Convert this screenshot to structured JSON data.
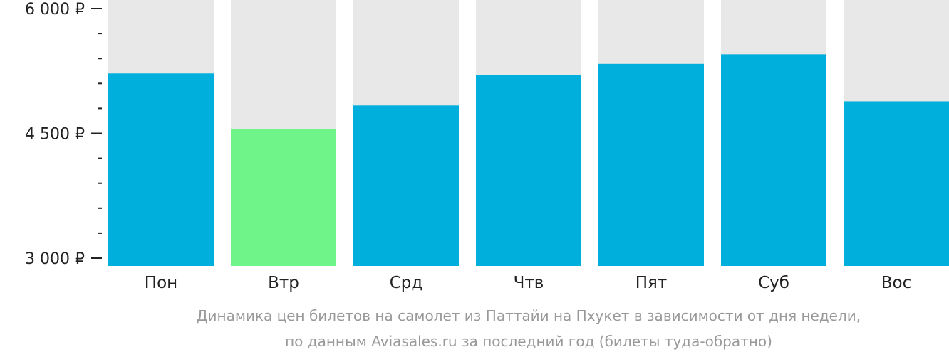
{
  "chart_data": {
    "type": "bar",
    "categories": [
      "Пон",
      "Втр",
      "Срд",
      "Чтв",
      "Пят",
      "Суб",
      "Вос"
    ],
    "values": [
      5220,
      4555,
      4835,
      5205,
      5335,
      5450,
      4885
    ],
    "highlight_index": 1,
    "ylim": [
      3000,
      6000
    ],
    "yticks": [
      {
        "value": 6000,
        "label": "6 000 ₽"
      },
      {
        "value": 4500,
        "label": "4 500 ₽"
      },
      {
        "value": 3000,
        "label": "3 000 ₽"
      }
    ],
    "minor_ticks": [
      5700,
      5400,
      5100,
      4800,
      4200,
      3900,
      3600,
      3300
    ],
    "caption_lines": [
      "Динамика цен билетов на самолет из Паттайи на Пхукет в зависимости от дня недели,",
      "по данным Aviasales.ru за последний год (билеты туда-обратно)"
    ],
    "colors": {
      "bar": "#00afdb",
      "highlight": "#6ff48a",
      "background_bar": "#e8e8e8",
      "axis": "#222222",
      "caption": "#999999"
    }
  }
}
